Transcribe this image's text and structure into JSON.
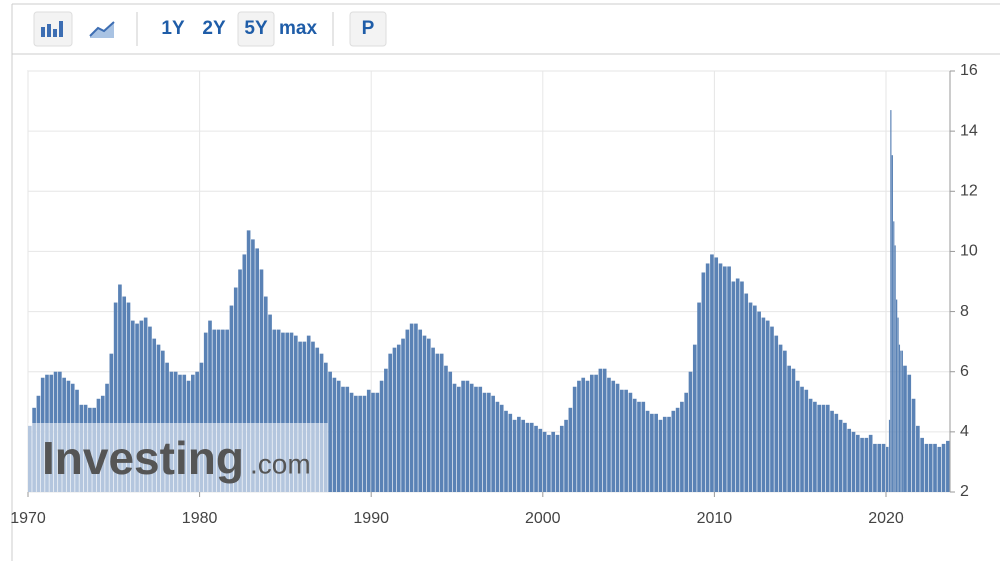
{
  "toolbar": {
    "ranges": [
      "1Y",
      "2Y",
      "5Y",
      "max"
    ],
    "extra": "P"
  },
  "watermark": {
    "name": "Investing",
    "suffix": ".com"
  },
  "chart_data": {
    "type": "bar",
    "color": "#5a82b5",
    "grid": true,
    "xlim": [
      1970,
      2023.73
    ],
    "xticks": [
      1970,
      1980,
      1990,
      2000,
      2010,
      2020
    ],
    "ylim": [
      2,
      16
    ],
    "yticks": [
      2,
      4,
      6,
      8,
      10,
      12,
      14,
      16
    ],
    "x": [
      1970,
      1970.25,
      1970.5,
      1970.75,
      1971,
      1971.25,
      1971.5,
      1971.75,
      1972,
      1972.25,
      1972.5,
      1972.75,
      1973,
      1973.25,
      1973.5,
      1973.75,
      1974,
      1974.25,
      1974.5,
      1974.75,
      1975,
      1975.25,
      1975.5,
      1975.75,
      1976,
      1976.25,
      1976.5,
      1976.75,
      1977,
      1977.25,
      1977.5,
      1977.75,
      1978,
      1978.25,
      1978.5,
      1978.75,
      1979,
      1979.25,
      1979.5,
      1979.75,
      1980,
      1980.25,
      1980.5,
      1980.75,
      1981,
      1981.25,
      1981.5,
      1981.75,
      1982,
      1982.25,
      1982.5,
      1982.75,
      1983,
      1983.25,
      1983.5,
      1983.75,
      1984,
      1984.25,
      1984.5,
      1984.75,
      1985,
      1985.25,
      1985.5,
      1985.75,
      1986,
      1986.25,
      1986.5,
      1986.75,
      1987,
      1987.25,
      1987.5,
      1987.75,
      1988,
      1988.25,
      1988.5,
      1988.75,
      1989,
      1989.25,
      1989.5,
      1989.75,
      1990,
      1990.25,
      1990.5,
      1990.75,
      1991,
      1991.25,
      1991.5,
      1991.75,
      1992,
      1992.25,
      1992.5,
      1992.75,
      1993,
      1993.25,
      1993.5,
      1993.75,
      1994,
      1994.25,
      1994.5,
      1994.75,
      1995,
      1995.25,
      1995.5,
      1995.75,
      1996,
      1996.25,
      1996.5,
      1996.75,
      1997,
      1997.25,
      1997.5,
      1997.75,
      1998,
      1998.25,
      1998.5,
      1998.75,
      1999,
      1999.25,
      1999.5,
      1999.75,
      2000,
      2000.25,
      2000.5,
      2000.75,
      2001,
      2001.25,
      2001.5,
      2001.75,
      2002,
      2002.25,
      2002.5,
      2002.75,
      2003,
      2003.25,
      2003.5,
      2003.75,
      2004,
      2004.25,
      2004.5,
      2004.75,
      2005,
      2005.25,
      2005.5,
      2005.75,
      2006,
      2006.25,
      2006.5,
      2006.75,
      2007,
      2007.25,
      2007.5,
      2007.75,
      2008,
      2008.25,
      2008.5,
      2008.75,
      2009,
      2009.25,
      2009.5,
      2009.75,
      2010,
      2010.25,
      2010.5,
      2010.75,
      2011,
      2011.25,
      2011.5,
      2011.75,
      2012,
      2012.25,
      2012.5,
      2012.75,
      2013,
      2013.25,
      2013.5,
      2013.75,
      2014,
      2014.25,
      2014.5,
      2014.75,
      2015,
      2015.25,
      2015.5,
      2015.75,
      2016,
      2016.25,
      2016.5,
      2016.75,
      2017,
      2017.25,
      2017.5,
      2017.75,
      2018,
      2018.25,
      2018.5,
      2018.75,
      2019,
      2019.25,
      2019.5,
      2019.75,
      2020,
      2020.17,
      2020.25,
      2020.33,
      2020.42,
      2020.5,
      2020.58,
      2020.67,
      2020.75,
      2020.83,
      2020.92,
      2021,
      2021.25,
      2021.5,
      2021.75,
      2022,
      2022.25,
      2022.5,
      2022.75,
      2023,
      2023.25,
      2023.5
    ],
    "values": [
      4.2,
      4.8,
      5.2,
      5.8,
      5.9,
      5.9,
      6.0,
      6.0,
      5.8,
      5.7,
      5.6,
      5.4,
      4.9,
      4.9,
      4.8,
      4.8,
      5.1,
      5.2,
      5.6,
      6.6,
      8.3,
      8.9,
      8.5,
      8.3,
      7.7,
      7.6,
      7.7,
      7.8,
      7.5,
      7.1,
      6.9,
      6.7,
      6.3,
      6.0,
      6.0,
      5.9,
      5.9,
      5.7,
      5.9,
      6.0,
      6.3,
      7.3,
      7.7,
      7.4,
      7.4,
      7.4,
      7.4,
      8.2,
      8.8,
      9.4,
      9.9,
      10.7,
      10.4,
      10.1,
      9.4,
      8.5,
      7.9,
      7.4,
      7.4,
      7.3,
      7.3,
      7.3,
      7.2,
      7.0,
      7.0,
      7.2,
      7.0,
      6.8,
      6.6,
      6.3,
      6.0,
      5.8,
      5.7,
      5.5,
      5.5,
      5.3,
      5.2,
      5.2,
      5.2,
      5.4,
      5.3,
      5.3,
      5.7,
      6.1,
      6.6,
      6.8,
      6.9,
      7.1,
      7.4,
      7.6,
      7.6,
      7.4,
      7.2,
      7.1,
      6.8,
      6.6,
      6.6,
      6.2,
      6.0,
      5.6,
      5.5,
      5.7,
      5.7,
      5.6,
      5.5,
      5.5,
      5.3,
      5.3,
      5.2,
      5.0,
      4.9,
      4.7,
      4.6,
      4.4,
      4.5,
      4.4,
      4.3,
      4.3,
      4.2,
      4.1,
      4.0,
      3.9,
      4.0,
      3.9,
      4.2,
      4.4,
      4.8,
      5.5,
      5.7,
      5.8,
      5.7,
      5.9,
      5.9,
      6.1,
      6.1,
      5.8,
      5.7,
      5.6,
      5.4,
      5.4,
      5.3,
      5.1,
      5.0,
      5.0,
      4.7,
      4.6,
      4.6,
      4.4,
      4.5,
      4.5,
      4.7,
      4.8,
      5.0,
      5.3,
      6.0,
      6.9,
      8.3,
      9.3,
      9.6,
      9.9,
      9.8,
      9.6,
      9.5,
      9.5,
      9.0,
      9.1,
      9.0,
      8.6,
      8.3,
      8.2,
      8.0,
      7.8,
      7.7,
      7.5,
      7.2,
      6.9,
      6.7,
      6.2,
      6.1,
      5.7,
      5.5,
      5.4,
      5.1,
      5.0,
      4.9,
      4.9,
      4.9,
      4.7,
      4.6,
      4.4,
      4.3,
      4.1,
      4.0,
      3.9,
      3.8,
      3.8,
      3.9,
      3.6,
      3.6,
      3.6,
      3.5,
      4.4,
      14.7,
      13.2,
      11.0,
      10.2,
      8.4,
      7.8,
      6.9,
      6.7,
      6.7,
      6.2,
      5.9,
      5.1,
      4.2,
      3.8,
      3.6,
      3.6,
      3.6,
      3.5,
      3.6,
      3.7
    ]
  }
}
